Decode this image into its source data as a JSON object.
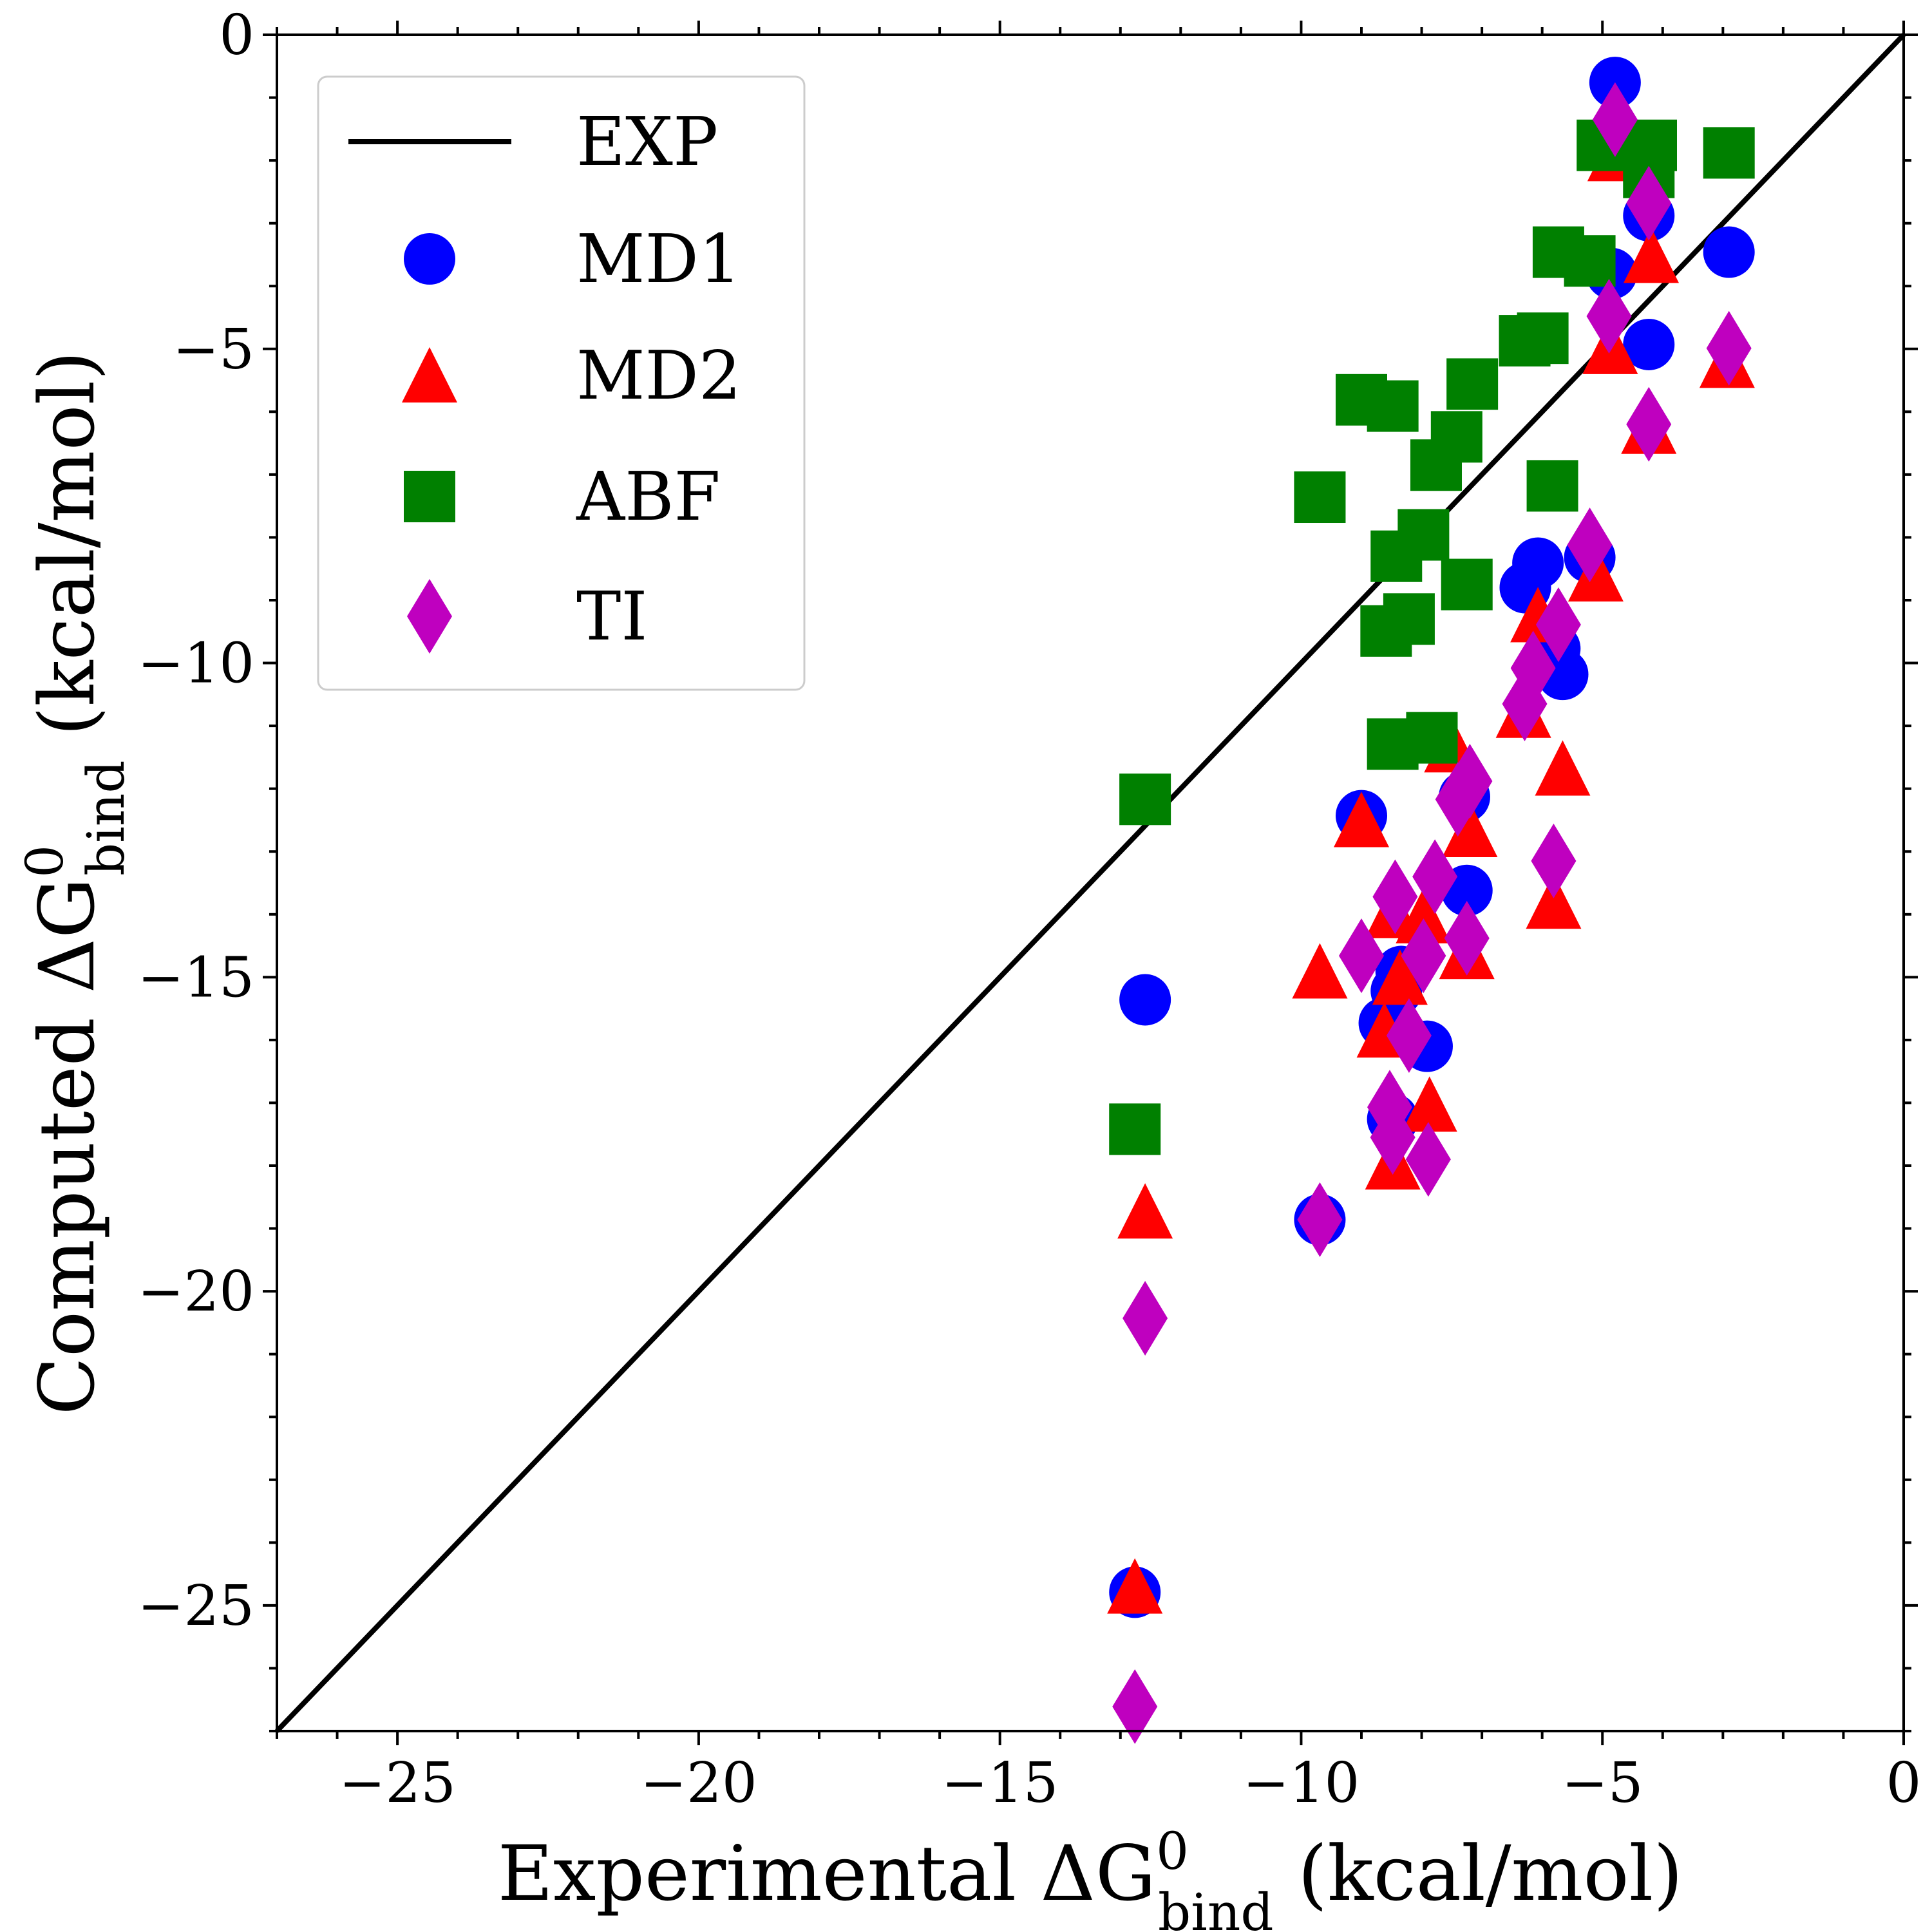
{
  "chart_data": {
    "type": "scatter",
    "title": "",
    "xlabel": {
      "main": "Experimental ΔG",
      "sup": "0",
      "sub": "bind",
      "unit": " (kcal/mol)"
    },
    "ylabel": {
      "main": "Computed ΔG",
      "sup": "0",
      "sub": "bind",
      "unit": " (kcal/mol)"
    },
    "xlim": [
      -27,
      0
    ],
    "ylim": [
      -27,
      0
    ],
    "xticks": [
      -25,
      -20,
      -15,
      -10,
      -5,
      0
    ],
    "yticks": [
      -25,
      -20,
      -15,
      -10,
      -5,
      0
    ],
    "xtick_labels": [
      "−25",
      "−20",
      "−15",
      "−10",
      "−5",
      "0"
    ],
    "ytick_labels": [
      "−25",
      "−20",
      "−15",
      "−10",
      "−5",
      "0"
    ],
    "grid": false,
    "legend_position": "top-left",
    "reference_line": {
      "name": "EXP",
      "color": "#000000",
      "points": [
        [
          -27,
          -27
        ],
        [
          0,
          0
        ]
      ]
    },
    "series": [
      {
        "name": "MD1",
        "marker": "circle",
        "color": "#0000ff",
        "points": [
          [
            -4.79,
            -0.76
          ],
          [
            -4.23,
            -2.88
          ],
          [
            -2.9,
            -3.46
          ],
          [
            -4.85,
            -3.8
          ],
          [
            -4.23,
            -4.93
          ],
          [
            -5.21,
            -8.32
          ],
          [
            -6.07,
            -8.41
          ],
          [
            -6.28,
            -8.8
          ],
          [
            -5.79,
            -9.77
          ],
          [
            -5.66,
            -10.18
          ],
          [
            -9.0,
            -12.43
          ],
          [
            -7.29,
            -12.13
          ],
          [
            -7.25,
            -13.62
          ],
          [
            -8.34,
            -14.91
          ],
          [
            -8.42,
            -15.22
          ],
          [
            -8.62,
            -15.73
          ],
          [
            -7.91,
            -16.1
          ],
          [
            -8.48,
            -17.26
          ],
          [
            -12.59,
            -15.36
          ],
          [
            -9.69,
            -18.86
          ],
          [
            -12.76,
            -24.79
          ]
        ]
      },
      {
        "name": "MD2",
        "marker": "triangle",
        "color": "#ff0000",
        "points": [
          [
            -4.79,
            -1.9
          ],
          [
            -4.19,
            -3.52
          ],
          [
            -4.87,
            -4.97
          ],
          [
            -2.93,
            -5.19
          ],
          [
            -4.23,
            -6.24
          ],
          [
            -5.11,
            -8.59
          ],
          [
            -6.07,
            -9.24
          ],
          [
            -6.31,
            -10.76
          ],
          [
            -5.66,
            -11.68
          ],
          [
            -7.5,
            -11.31
          ],
          [
            -9.0,
            -12.5
          ],
          [
            -7.2,
            -12.66
          ],
          [
            -5.81,
            -13.8
          ],
          [
            -8.48,
            -13.95
          ],
          [
            -7.97,
            -14.03
          ],
          [
            -7.25,
            -14.6
          ],
          [
            -9.69,
            -14.91
          ],
          [
            -8.36,
            -15.01
          ],
          [
            -8.62,
            -15.85
          ],
          [
            -7.87,
            -17.03
          ],
          [
            -8.48,
            -17.95
          ],
          [
            -12.59,
            -18.73
          ],
          [
            -12.76,
            -24.7
          ]
        ]
      },
      {
        "name": "ABF",
        "marker": "square",
        "color": "#008000",
        "points": [
          [
            -5.0,
            -1.76
          ],
          [
            -4.19,
            -1.76
          ],
          [
            -4.23,
            -2.19
          ],
          [
            -2.9,
            -1.88
          ],
          [
            -5.73,
            -3.46
          ],
          [
            -5.21,
            -3.6
          ],
          [
            -6.29,
            -4.87
          ],
          [
            -5.99,
            -4.83
          ],
          [
            -7.16,
            -5.56
          ],
          [
            -9.0,
            -5.81
          ],
          [
            -8.48,
            -5.91
          ],
          [
            -7.42,
            -6.4
          ],
          [
            -7.76,
            -6.85
          ],
          [
            -9.69,
            -7.36
          ],
          [
            -5.83,
            -7.18
          ],
          [
            -7.97,
            -7.96
          ],
          [
            -8.42,
            -8.3
          ],
          [
            -7.25,
            -8.75
          ],
          [
            -8.59,
            -9.49
          ],
          [
            -8.21,
            -9.3
          ],
          [
            -8.48,
            -11.29
          ],
          [
            -7.83,
            -11.19
          ],
          [
            -12.59,
            -12.17
          ],
          [
            -12.76,
            -17.42
          ]
        ]
      },
      {
        "name": "TI",
        "marker": "diamond",
        "color": "#bf00bf",
        "points": [
          [
            -4.79,
            -1.35
          ],
          [
            -4.23,
            -2.68
          ],
          [
            -2.9,
            -4.99
          ],
          [
            -4.89,
            -4.48
          ],
          [
            -4.23,
            -6.2
          ],
          [
            -5.21,
            -8.12
          ],
          [
            -5.73,
            -9.39
          ],
          [
            -6.15,
            -10.08
          ],
          [
            -6.29,
            -10.65
          ],
          [
            -7.2,
            -11.88
          ],
          [
            -7.4,
            -12.17
          ],
          [
            -5.81,
            -13.15
          ],
          [
            -8.44,
            -13.72
          ],
          [
            -7.78,
            -13.4
          ],
          [
            -9.0,
            -14.66
          ],
          [
            -7.97,
            -14.66
          ],
          [
            -7.25,
            -14.38
          ],
          [
            -8.21,
            -15.93
          ],
          [
            -8.53,
            -17.07
          ],
          [
            -8.48,
            -17.55
          ],
          [
            -7.89,
            -17.9
          ],
          [
            -9.69,
            -18.86
          ],
          [
            -12.59,
            -20.43
          ],
          [
            -12.76,
            -26.61
          ]
        ]
      }
    ]
  }
}
